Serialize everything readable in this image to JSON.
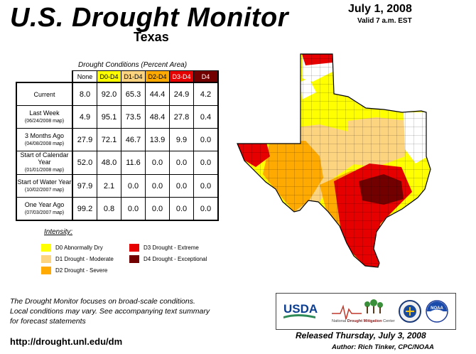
{
  "header": {
    "title": "U.S. Drought Monitor",
    "subtitle": "Texas",
    "date": "July 1, 2008",
    "valid": "Valid 7 a.m. EST"
  },
  "table": {
    "caption": "Drought Conditions (Percent Area)",
    "columns": [
      "None",
      "D0-D4",
      "D1-D4",
      "D2-D4",
      "D3-D4",
      "D4"
    ],
    "column_colors": [
      "#ffffff",
      "#ffff00",
      "#fcd37f",
      "#ffaa00",
      "#e60000",
      "#730000"
    ],
    "column_text_colors": [
      "#000000",
      "#000000",
      "#000000",
      "#000000",
      "#ffffff",
      "#ffffff"
    ],
    "rows": [
      {
        "label": "Current",
        "sub": "",
        "values": [
          "8.0",
          "92.0",
          "65.3",
          "44.4",
          "24.9",
          "4.2"
        ]
      },
      {
        "label": "Last Week",
        "sub": "(06/24/2008 map)",
        "values": [
          "4.9",
          "95.1",
          "73.5",
          "48.4",
          "27.8",
          "0.4"
        ]
      },
      {
        "label": "3 Months Ago",
        "sub": "(04/08/2008 map)",
        "values": [
          "27.9",
          "72.1",
          "46.7",
          "13.9",
          "9.9",
          "0.0"
        ]
      },
      {
        "label": "Start of Calendar Year",
        "sub": "(01/01/2008 map)",
        "values": [
          "52.0",
          "48.0",
          "11.6",
          "0.0",
          "0.0",
          "0.0"
        ]
      },
      {
        "label": "Start of Water Year",
        "sub": "(10/02/2007 map)",
        "values": [
          "97.9",
          "2.1",
          "0.0",
          "0.0",
          "0.0",
          "0.0"
        ]
      },
      {
        "label": "One Year Ago",
        "sub": "(07/03/2007 map)",
        "values": [
          "99.2",
          "0.8",
          "0.0",
          "0.0",
          "0.0",
          "0.0"
        ]
      }
    ]
  },
  "legend": {
    "title": "Intensity:",
    "items": [
      {
        "label": "D0 Abnormally Dry",
        "color": "#ffff00"
      },
      {
        "label": "D1 Drought - Moderate",
        "color": "#fcd37f"
      },
      {
        "label": "D2 Drought - Severe",
        "color": "#ffaa00"
      },
      {
        "label": "D3 Drought - Extreme",
        "color": "#e60000"
      },
      {
        "label": "D4 Drought - Exceptional",
        "color": "#730000"
      }
    ]
  },
  "footer": {
    "note_line1": "The Drought Monitor focuses on broad-scale conditions.",
    "note_line2": "Local conditions may vary. See accompanying text summary",
    "note_line3": "for forecast statements",
    "url": "http://drought.unl.edu/dm",
    "released": "Released Thursday, July 3, 2008",
    "author": "Author: Rich Tinker, CPC/NOAA"
  },
  "logos": {
    "usda": "USDA",
    "ndmc_prefix": "National ",
    "ndmc_main": "Drought Mitigation",
    "ndmc_suffix": " Center",
    "noaa": "NOAA"
  }
}
